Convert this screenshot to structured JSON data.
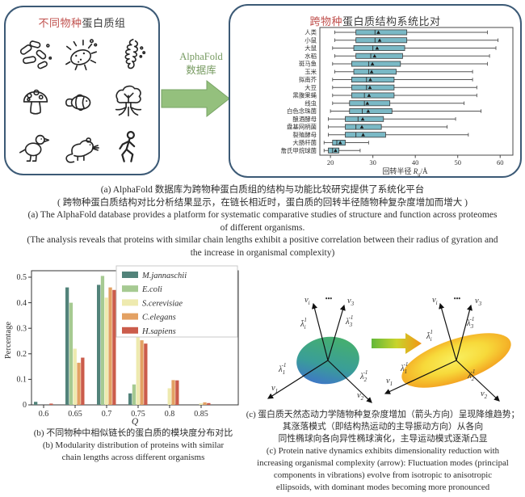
{
  "colors": {
    "panel_border": "#3c5a76",
    "highlight_red": "#c0504d",
    "text_dark": "#3b3b3b",
    "arrow_green_fill": "#94c07d",
    "arrow_green_edge": "#79a566",
    "arrow_text_green": "#769a60",
    "boxplot_fill": "#7ab9c6",
    "ellipsoid_green": "#46b06c",
    "ellipsoid_blue": "#3f6fd0",
    "ellipsoid_yellow": "#f9ef5e",
    "ellipsoid_orange": "#f29018"
  },
  "panel_a": {
    "left_box": {
      "title_highlight": "不同物种",
      "title_rest": "蛋白质组",
      "icons": [
        "bacteria-rods",
        "flagellated-bacterium",
        "algae",
        "mushroom",
        "clownfish",
        "tree-with-roots",
        "bird",
        "rat",
        "walking-human"
      ]
    },
    "arrow": {
      "label_line1": "AlphaFold",
      "label_line2": "数据库"
    },
    "right_box": {
      "title_highlight": "跨物种",
      "title_rest": "蛋白质结构系统比对"
    },
    "captions": [
      "(a) AlphaFold 数据库为跨物种蛋白质组的结构与功能比较研究提供了系统化平台",
      "( 跨物种蛋白质结构对比分析结果显示，在链长相近时，蛋白质的回转半径随物种复杂度增加而增大 )",
      "(a) The AlphaFold database provides a platform for systematic comparative studies of structure and function across proteomes",
      "of different organisms.",
      "(The analysis reveals that proteins with similar chain lengths exhibit a positive correlation between their radius of gyration and",
      "the increase in organismal complexity)"
    ]
  },
  "panel_b": {
    "captions": [
      "(b)  不同物种中相似链长的蛋白质的模块度分布对比",
      "(b) Modularity distribution of proteins with similar",
      "chain lengths across different organisms"
    ]
  },
  "panel_c": {
    "diagram": {
      "dots": "•••",
      "vectors": [
        {
          "base": "v",
          "sub": "i"
        },
        {
          "base": "v",
          "sub": "3"
        },
        {
          "base": "v",
          "sub": "1"
        },
        {
          "base": "v",
          "sub": "2"
        }
      ],
      "eigen": [
        {
          "base": "λ",
          "sub": "i",
          "sup": "-1"
        },
        {
          "base": "λ",
          "sub": "3",
          "sup": "-1"
        },
        {
          "base": "λ",
          "sub": "1",
          "sup": "-1"
        },
        {
          "base": "λ",
          "sub": "2",
          "sup": "-1"
        }
      ]
    },
    "captions": [
      "(c)  蛋白质天然态动力学随物种复杂度增加（箭头方向）呈现降维趋势；",
      "其涨落模式（即结构热运动的主导振动方向）从各向",
      "同性椭球向各向异性椭球演化，主导运动模式逐渐凸显",
      "(c) Protein native dynamics exhibits dimensionality reduction with",
      "increasing organismal complexity (arrow): Fluctuation modes (principal",
      "components in vibrations) evolve from isotropic to anisotropic",
      "ellipsoids, with dominant modes becoming more pronounced"
    ]
  },
  "chart_data": [
    {
      "type": "boxplot",
      "title": "跨物种蛋白质结构系统比对",
      "xlabel_parts": {
        "prefix": "回转半径 ",
        "symbol": "R",
        "sub": "g",
        "suffix": "/Å"
      },
      "xlim": [
        17.5,
        63
      ],
      "xticks": [
        20,
        30,
        40,
        50,
        60
      ],
      "box_fill": "#7ab9c6",
      "categories": [
        "人类",
        "小鼠",
        "大鼠",
        "水稻",
        "斑马鱼",
        "玉米",
        "拟南芥",
        "大豆",
        "黑腹果蝇",
        "线虫",
        "白色念珠菌",
        "酿酒酵母",
        "盘基网柄菌",
        "裂殖酵母",
        "大肠杆菌",
        "詹氏甲烷球菌"
      ],
      "boxes_key": [
        "whisker_low",
        "q1",
        "median",
        "mean",
        "q3",
        "whisker_high"
      ],
      "boxes": [
        [
          21.0,
          26.0,
          30.5,
          31.3,
          38.0,
          57.0
        ],
        [
          21.0,
          26.0,
          30.5,
          31.6,
          38.0,
          59.5
        ],
        [
          20.5,
          25.5,
          30.0,
          31.0,
          37.5,
          59.0
        ],
        [
          21.0,
          26.0,
          29.5,
          30.4,
          37.0,
          57.5
        ],
        [
          20.5,
          25.0,
          29.0,
          29.9,
          36.5,
          57.0
        ],
        [
          21.0,
          25.5,
          29.0,
          29.7,
          35.5,
          53.5
        ],
        [
          20.5,
          25.0,
          28.5,
          29.4,
          35.0,
          53.5
        ],
        [
          20.5,
          25.0,
          28.5,
          29.3,
          35.0,
          54.5
        ],
        [
          20.5,
          25.0,
          28.0,
          29.1,
          35.0,
          54.5
        ],
        [
          20.5,
          24.5,
          28.0,
          28.7,
          34.0,
          51.5
        ],
        [
          20.0,
          24.5,
          27.5,
          28.9,
          34.5,
          55.5
        ],
        [
          19.5,
          23.5,
          26.5,
          27.6,
          32.5,
          49.5
        ],
        [
          19.5,
          23.5,
          26.0,
          27.4,
          32.0,
          47.5
        ],
        [
          19.5,
          23.5,
          26.0,
          27.7,
          33.0,
          52.5
        ],
        [
          18.5,
          20.5,
          21.5,
          22.3,
          23.5,
          29.0
        ],
        [
          18.5,
          19.5,
          20.5,
          21.2,
          22.0,
          27.0
        ]
      ]
    },
    {
      "type": "bar",
      "categories": [
        "0.6",
        "0.65",
        "0.7",
        "0.75",
        "0.8",
        "0.85"
      ],
      "series": [
        {
          "name": "M.jannaschii",
          "color": "#52837a",
          "values": [
            0.012,
            0.46,
            0.47,
            0.045,
            0,
            0
          ]
        },
        {
          "name": "E.coli",
          "color": "#a6ca92",
          "values": [
            0,
            0.4,
            0.505,
            0.08,
            0,
            0
          ]
        },
        {
          "name": "S.cerevisiae",
          "color": "#eeeaaf",
          "values": [
            0,
            0.22,
            0.42,
            0.27,
            0.065,
            0.006
          ]
        },
        {
          "name": "C.elegans",
          "color": "#e3a163",
          "values": [
            0,
            0.165,
            0.46,
            0.253,
            0.097,
            0.01
          ]
        },
        {
          "name": "H.sapiens",
          "color": "#cb5c4b",
          "values": [
            0.005,
            0.185,
            0.45,
            0.24,
            0.096,
            0.007
          ]
        }
      ],
      "xlabel": "Q",
      "ylabel": "Percentage",
      "ylim": [
        0,
        0.525
      ],
      "yticks": [
        0,
        0.1,
        0.2,
        0.3,
        0.4,
        0.5
      ],
      "legend_position": "upper right",
      "grid": false
    }
  ]
}
